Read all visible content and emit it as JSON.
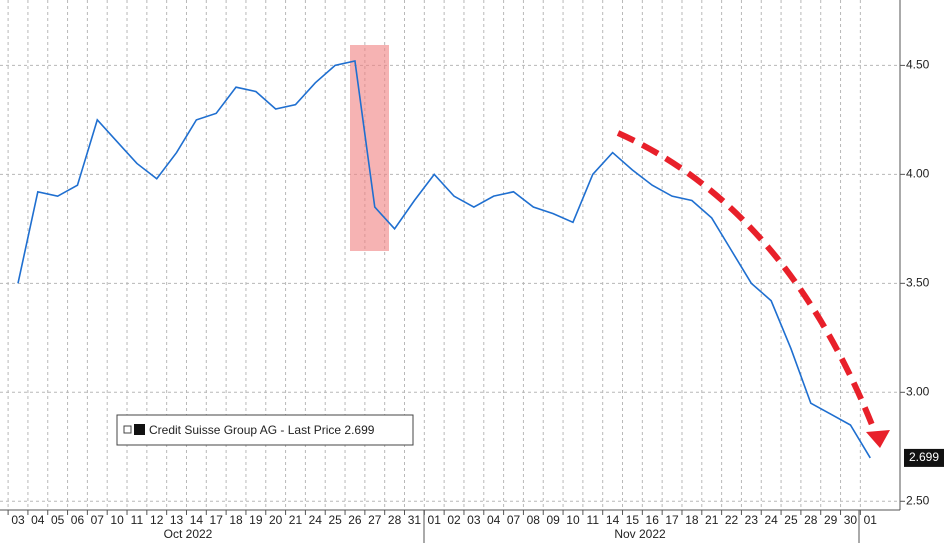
{
  "chart_data": {
    "type": "line",
    "categories": [
      "03",
      "04",
      "05",
      "06",
      "07",
      "10",
      "11",
      "12",
      "13",
      "14",
      "17",
      "18",
      "19",
      "20",
      "21",
      "24",
      "25",
      "26",
      "27",
      "28",
      "31",
      "01",
      "02",
      "03",
      "04",
      "07",
      "08",
      "09",
      "10",
      "11",
      "14",
      "15",
      "16",
      "17",
      "18",
      "21",
      "22",
      "23",
      "24",
      "25",
      "28",
      "29",
      "30",
      "01"
    ],
    "month_labels": [
      "Oct 2022",
      "Nov 2022"
    ],
    "series": [
      {
        "name": "Credit Suisse Group AG - Last Price",
        "color": "#1f6fd0",
        "values": [
          3.5,
          3.92,
          3.9,
          3.95,
          4.25,
          4.15,
          4.05,
          3.98,
          4.1,
          4.25,
          4.28,
          4.4,
          4.38,
          4.3,
          4.32,
          4.42,
          4.5,
          4.52,
          3.85,
          3.75,
          3.88,
          4.0,
          3.9,
          3.85,
          3.9,
          3.92,
          3.85,
          3.82,
          3.78,
          4.0,
          4.1,
          4.02,
          3.95,
          3.9,
          3.88,
          3.8,
          3.65,
          3.5,
          3.42,
          3.2,
          2.95,
          2.9,
          2.85,
          2.699
        ]
      }
    ],
    "ylim": [
      2.46,
      4.8
    ],
    "yticks": [
      {
        "value": 2.5,
        "label": "2.50"
      },
      {
        "value": 3.0,
        "label": "3.00"
      },
      {
        "value": 3.5,
        "label": "3.50"
      },
      {
        "value": 4.0,
        "label": "4.00"
      },
      {
        "value": 4.5,
        "label": "4.50"
      }
    ],
    "grid": true
  }
}
